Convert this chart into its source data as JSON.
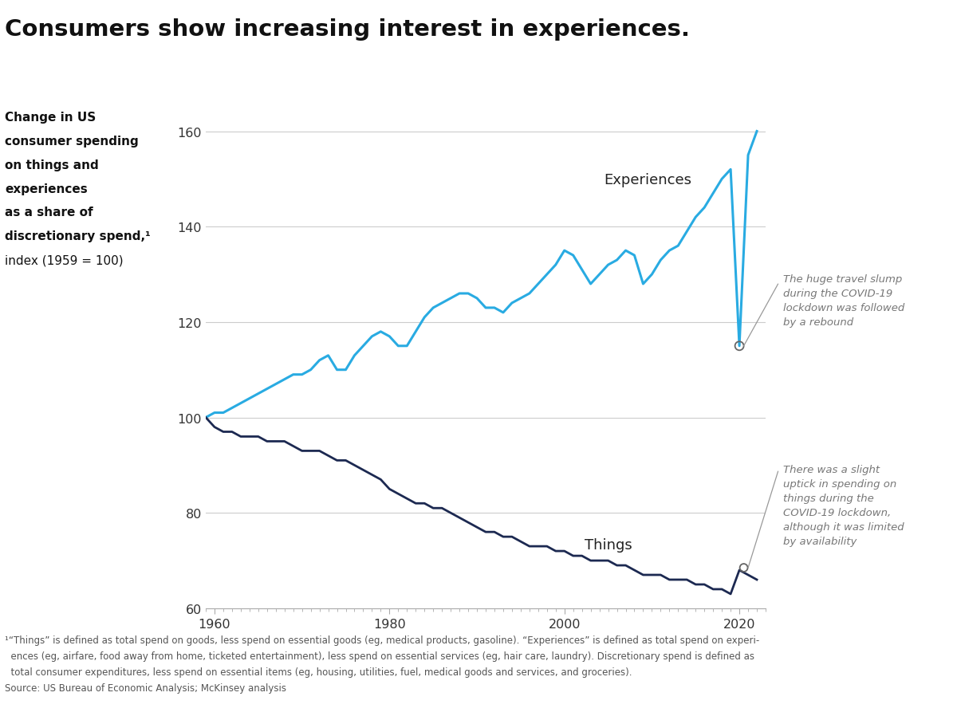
{
  "title": "Consumers show increasing interest in experiences.",
  "ylabel_line1": "Change in US",
  "ylabel_line2": "consumer spending",
  "ylabel_line3": "on things and",
  "ylabel_line4": "experiences",
  "ylabel_line5": "as a share of",
  "ylabel_line6": "discretionary spend,¹",
  "ylabel_line7": "index (1959 = 100)",
  "xlim": [
    1959,
    2023
  ],
  "ylim": [
    60,
    165
  ],
  "yticks": [
    60,
    80,
    100,
    120,
    140,
    160
  ],
  "xticks": [
    1960,
    1980,
    2000,
    2020
  ],
  "background_color": "#ffffff",
  "experiences_color": "#29ABE2",
  "things_color": "#1C2951",
  "experiences_label": "Experiences",
  "things_label": "Things",
  "annotation1": "The huge travel slump\nduring the COVID-19\nlockdown was followed\nby a rebound",
  "annotation2": "There was a slight\nuptick in spending on\nthings during the\nCOVID-19 lockdown,\nalthough it was limited\nby availability",
  "footnote1": "¹“Things” is defined as total spend on goods, less spend on essential goods (eg, medical products, gasoline). “Experiences” is defined as total spend on experi-",
  "footnote2": "  ences (eg, airfare, food away from home, ticketed entertainment), less spend on essential services (eg, hair care, laundry). Discretionary spend is defined as",
  "footnote3": "  total consumer expenditures, less spend on essential items (eg, housing, utilities, fuel, medical goods and services, and groceries).",
  "footnote4": "Source: US Bureau of Economic Analysis; McKinsey analysis",
  "experiences_years": [
    1959,
    1960,
    1961,
    1962,
    1963,
    1964,
    1965,
    1966,
    1967,
    1968,
    1969,
    1970,
    1971,
    1972,
    1973,
    1974,
    1975,
    1976,
    1977,
    1978,
    1979,
    1980,
    1981,
    1982,
    1983,
    1984,
    1985,
    1986,
    1987,
    1988,
    1989,
    1990,
    1991,
    1992,
    1993,
    1994,
    1995,
    1996,
    1997,
    1998,
    1999,
    2000,
    2001,
    2002,
    2003,
    2004,
    2005,
    2006,
    2007,
    2008,
    2009,
    2010,
    2011,
    2012,
    2013,
    2014,
    2015,
    2016,
    2017,
    2018,
    2019,
    2020,
    2021,
    2022
  ],
  "experiences_values": [
    100,
    101,
    101,
    102,
    103,
    104,
    105,
    106,
    107,
    108,
    109,
    109,
    110,
    112,
    113,
    110,
    110,
    113,
    115,
    117,
    118,
    117,
    115,
    115,
    118,
    121,
    123,
    124,
    125,
    126,
    126,
    125,
    123,
    123,
    122,
    124,
    125,
    126,
    128,
    130,
    132,
    135,
    134,
    131,
    128,
    130,
    132,
    133,
    135,
    134,
    128,
    130,
    133,
    135,
    136,
    139,
    142,
    144,
    147,
    150,
    152,
    115,
    155,
    160
  ],
  "things_years": [
    1959,
    1960,
    1961,
    1962,
    1963,
    1964,
    1965,
    1966,
    1967,
    1968,
    1969,
    1970,
    1971,
    1972,
    1973,
    1974,
    1975,
    1976,
    1977,
    1978,
    1979,
    1980,
    1981,
    1982,
    1983,
    1984,
    1985,
    1986,
    1987,
    1988,
    1989,
    1990,
    1991,
    1992,
    1993,
    1994,
    1995,
    1996,
    1997,
    1998,
    1999,
    2000,
    2001,
    2002,
    2003,
    2004,
    2005,
    2006,
    2007,
    2008,
    2009,
    2010,
    2011,
    2012,
    2013,
    2014,
    2015,
    2016,
    2017,
    2018,
    2019,
    2020,
    2021,
    2022
  ],
  "things_values": [
    100,
    98,
    97,
    97,
    96,
    96,
    96,
    95,
    95,
    95,
    94,
    93,
    93,
    93,
    92,
    91,
    91,
    90,
    89,
    88,
    87,
    85,
    84,
    83,
    82,
    82,
    81,
    81,
    80,
    79,
    78,
    77,
    76,
    76,
    75,
    75,
    74,
    73,
    73,
    73,
    72,
    72,
    71,
    71,
    70,
    70,
    70,
    69,
    69,
    68,
    67,
    67,
    67,
    66,
    66,
    66,
    65,
    65,
    64,
    64,
    63,
    68,
    67,
    66
  ]
}
